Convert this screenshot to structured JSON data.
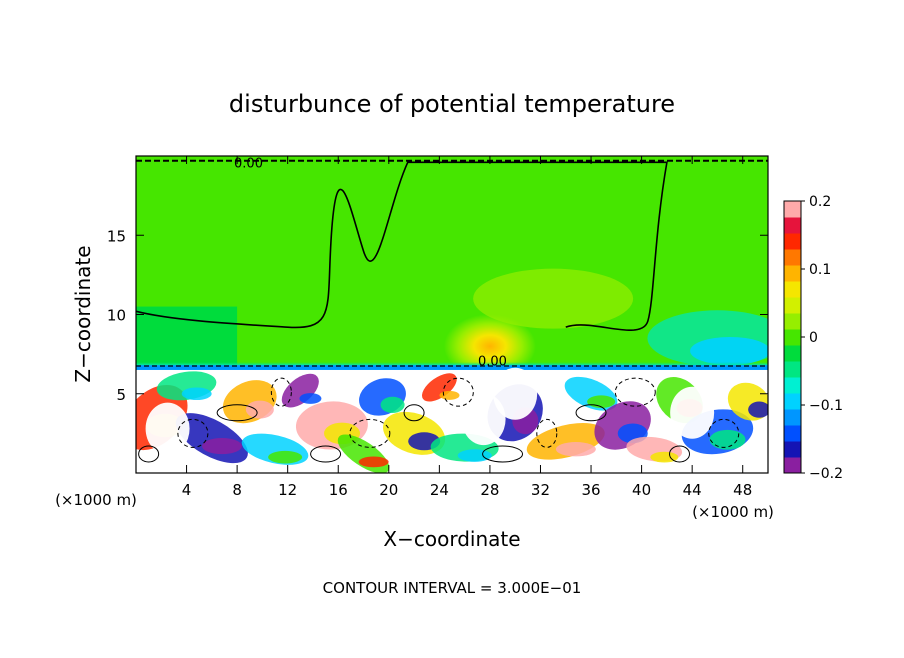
{
  "chart_data": {
    "type": "heatmap",
    "title": "disturbunce of potential temperature",
    "xlabel": "X−coordinate",
    "ylabel": "Z−coordinate",
    "x_unit_left": "(×1000 m)",
    "x_unit_right": "(×1000 m)",
    "xlim": [
      0,
      50
    ],
    "ylim": [
      0,
      20
    ],
    "x_ticks": [
      4,
      8,
      12,
      16,
      20,
      24,
      28,
      32,
      36,
      40,
      44,
      48
    ],
    "x_tick_labels": [
      "4",
      "8",
      "12",
      "16",
      "20",
      "24",
      "28",
      "32",
      "36",
      "40",
      "44",
      "48"
    ],
    "y_ticks": [
      5,
      10,
      15
    ],
    "y_tick_labels": [
      "5",
      "10",
      "15"
    ],
    "contour_labels": [
      {
        "text": "0.00",
        "x": 8.9,
        "y": 19.6
      },
      {
        "text": "0.00",
        "x": 28.2,
        "y": 7.1
      }
    ],
    "footer": "CONTOUR INTERVAL = 3.000E−01",
    "colorbar": {
      "range": [
        -0.2,
        0.2
      ],
      "tick_values": [
        0.2,
        0.1,
        0,
        -0.1,
        -0.2
      ],
      "tick_labels": [
        "0.2",
        "0.1",
        "0",
        "−0.1",
        "−0.2"
      ],
      "colors": [
        "#8a1fa0",
        "#1414b4",
        "#0050ff",
        "#0096ff",
        "#00d2ff",
        "#00f0d2",
        "#00e682",
        "#00dc3c",
        "#46e600",
        "#96ee00",
        "#d2f000",
        "#f5e600",
        "#ffb400",
        "#ff7800",
        "#ff2800",
        "#e6143c",
        "#ffaaaa"
      ]
    },
    "regions": [
      {
        "name": "upper layer",
        "z_range": [
          6.5,
          20
        ],
        "dominant_value": 0.0,
        "color": "#46e600"
      },
      {
        "name": "warm anomaly",
        "center": [
          28,
          8
        ],
        "value": 0.08,
        "color": "#f5e600"
      },
      {
        "name": "cool anomaly right",
        "center": [
          46,
          8.5
        ],
        "value": -0.05,
        "color": "#00d2ff"
      },
      {
        "name": "lower turbulent layer",
        "z_range": [
          0,
          6.5
        ],
        "value_range": [
          -0.2,
          0.2
        ]
      }
    ],
    "grid": false,
    "legend_placement": "right"
  }
}
